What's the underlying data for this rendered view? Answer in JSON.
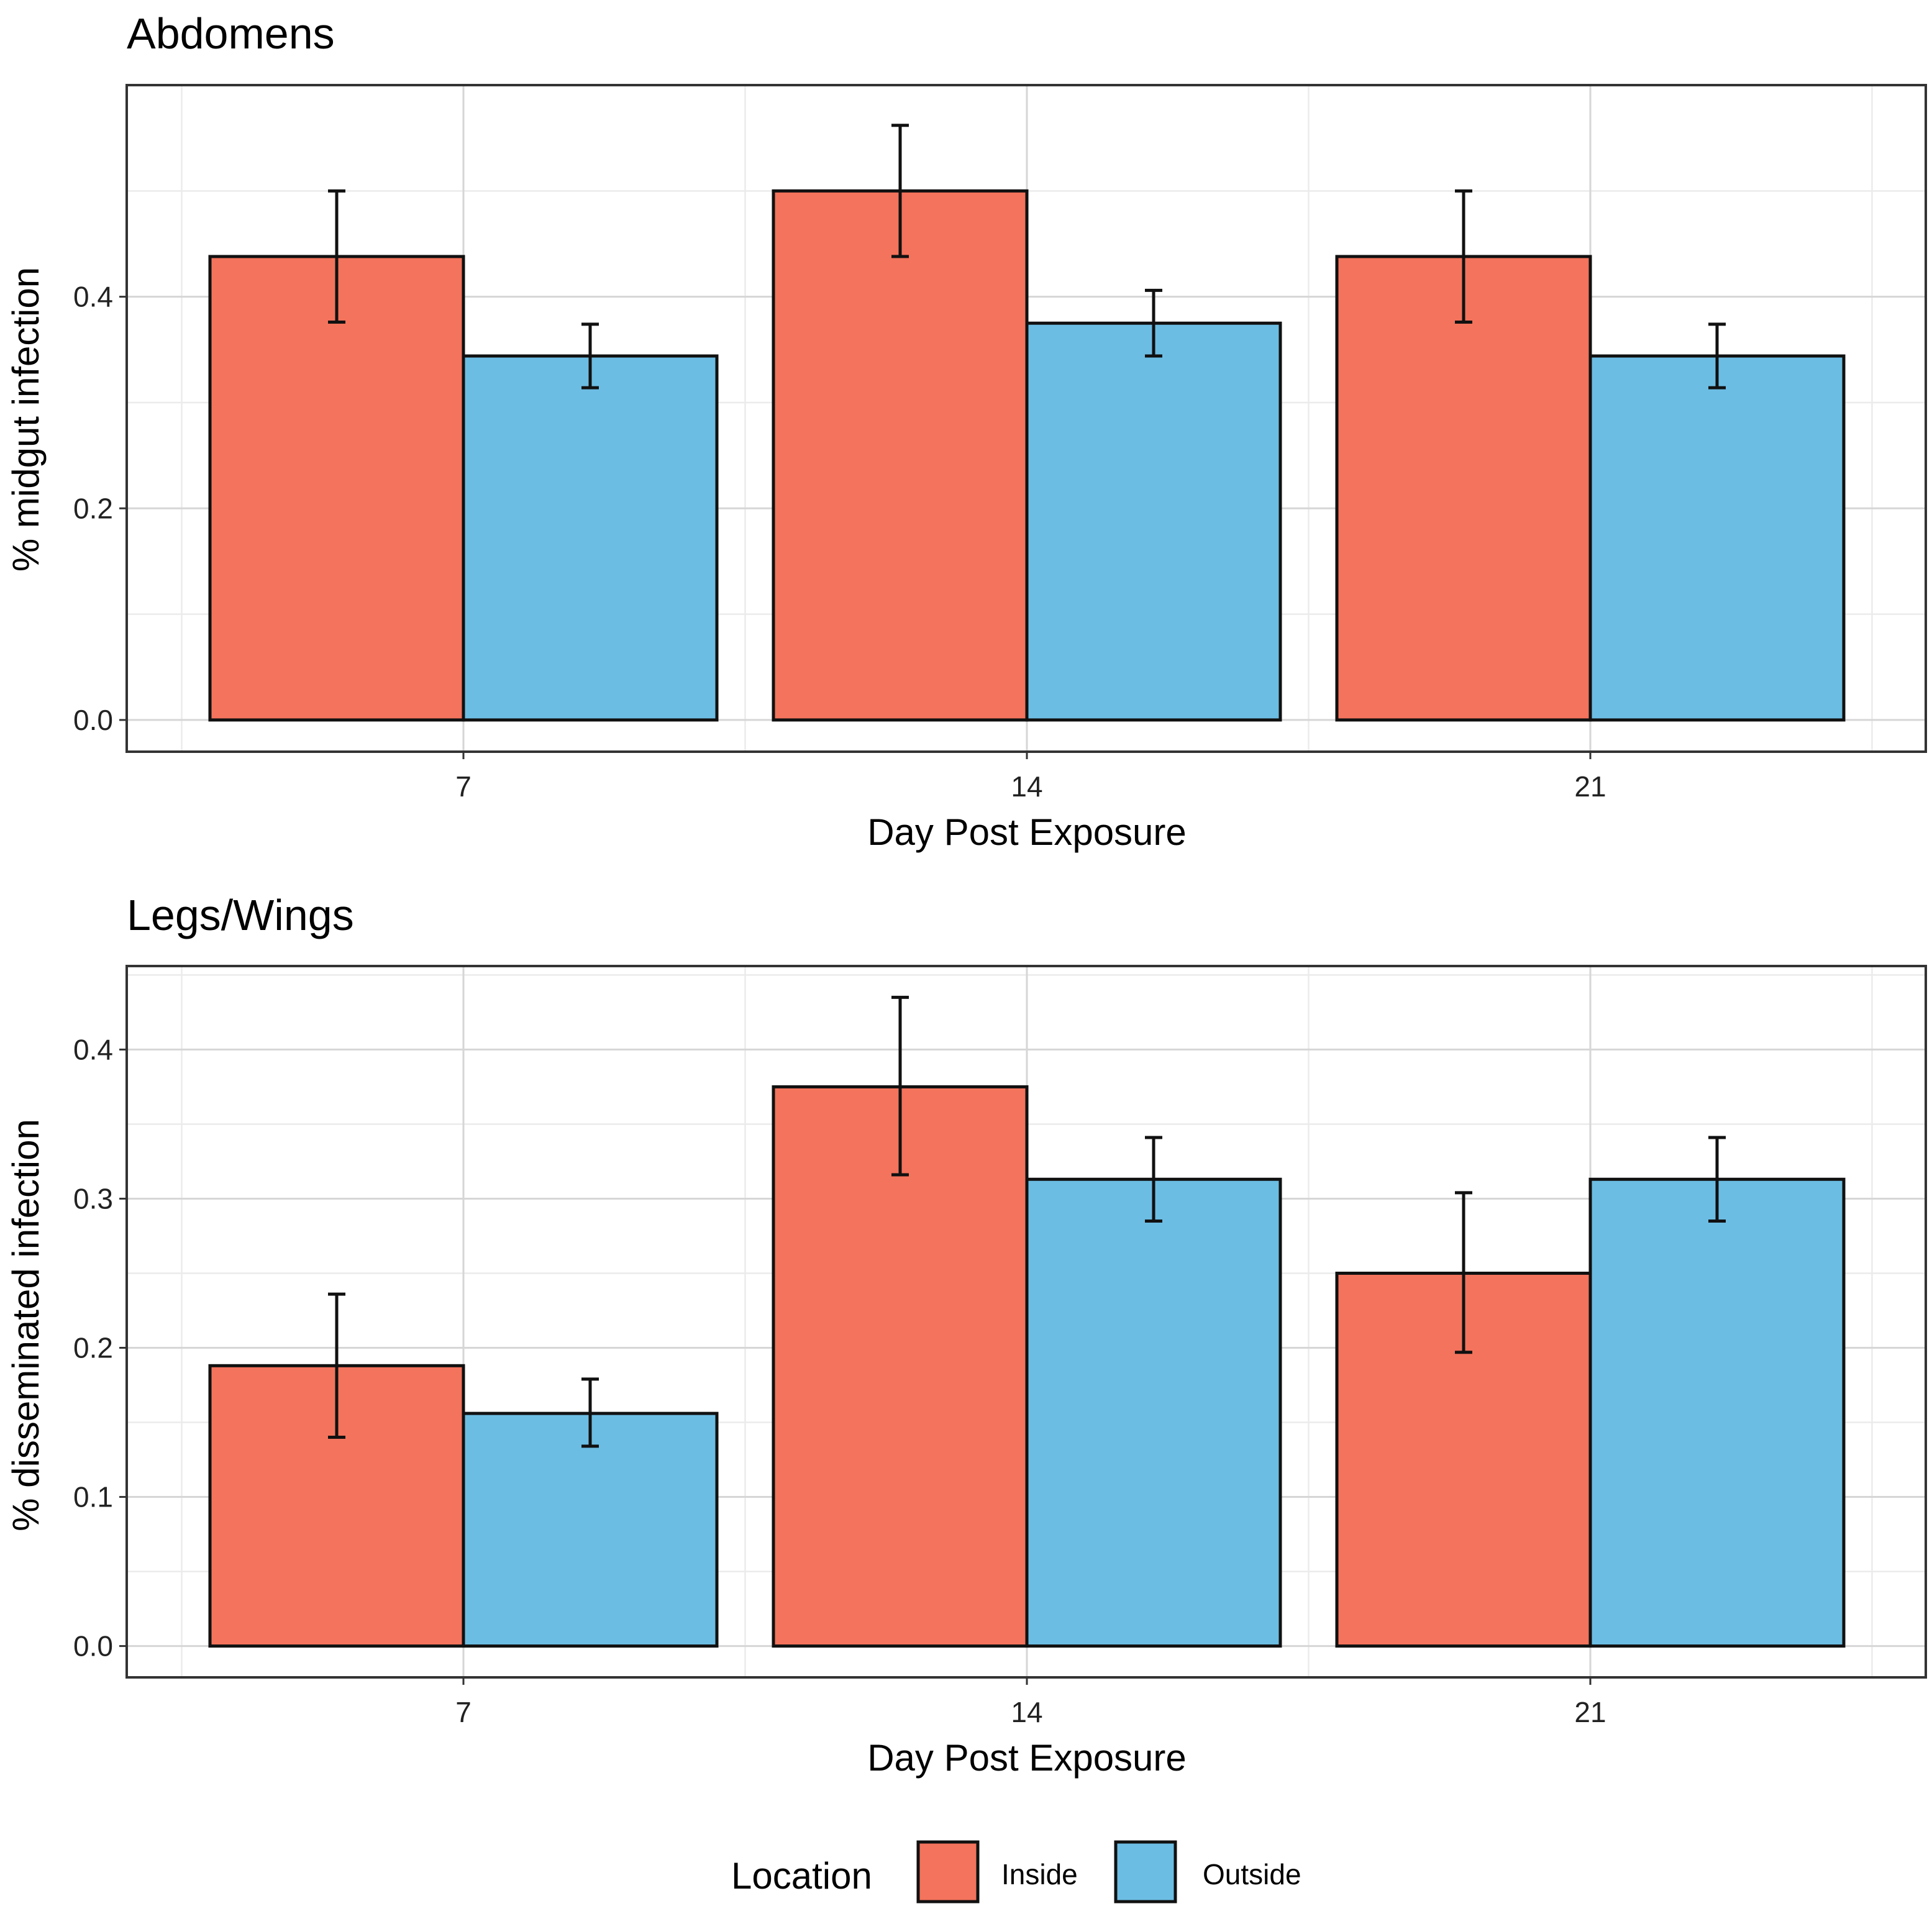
{
  "chart_data": [
    {
      "type": "bar",
      "title": "Abdomens",
      "xlabel": "Day Post Exposure",
      "ylabel": "% midgut infection",
      "categories": [
        "7",
        "14",
        "21"
      ],
      "ylim": [
        -0.03,
        0.6
      ],
      "yticks": [
        "0.0",
        "0.2",
        "0.4"
      ],
      "series": [
        {
          "name": "Inside",
          "values": [
            0.438,
            0.5,
            0.438
          ],
          "err_low": [
            0.376,
            0.438,
            0.376
          ],
          "err_high": [
            0.5,
            0.562,
            0.5
          ]
        },
        {
          "name": "Outside",
          "values": [
            0.344,
            0.375,
            0.344
          ],
          "err_low": [
            0.314,
            0.344,
            0.314
          ],
          "err_high": [
            0.374,
            0.406,
            0.374
          ]
        }
      ]
    },
    {
      "type": "bar",
      "title": "Legs/Wings",
      "xlabel": "Day Post Exposure",
      "ylabel": "% disseminated infection",
      "categories": [
        "7",
        "14",
        "21"
      ],
      "ylim": [
        -0.021,
        0.456
      ],
      "yticks": [
        "0.0",
        "0.1",
        "0.2",
        "0.3",
        "0.4"
      ],
      "series": [
        {
          "name": "Inside",
          "values": [
            0.188,
            0.375,
            0.25
          ],
          "err_low": [
            0.14,
            0.316,
            0.197
          ],
          "err_high": [
            0.236,
            0.435,
            0.304
          ]
        },
        {
          "name": "Outside",
          "values": [
            0.156,
            0.313,
            0.313
          ],
          "err_low": [
            0.134,
            0.285,
            0.285
          ],
          "err_high": [
            0.179,
            0.341,
            0.341
          ]
        }
      ]
    }
  ],
  "legend": {
    "title": "Location",
    "items": [
      {
        "label": "Inside",
        "color": "#F4735C"
      },
      {
        "label": "Outside",
        "color": "#6CBDE3"
      }
    ]
  }
}
